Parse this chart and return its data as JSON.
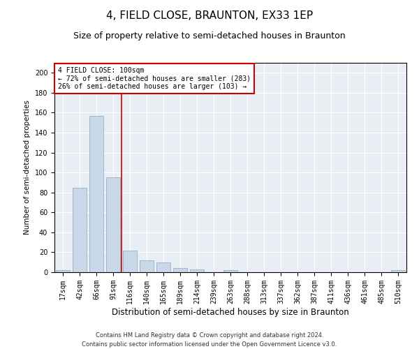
{
  "title": "4, FIELD CLOSE, BRAUNTON, EX33 1EP",
  "subtitle": "Size of property relative to semi-detached houses in Braunton",
  "xlabel": "Distribution of semi-detached houses by size in Braunton",
  "ylabel": "Number of semi-detached properties",
  "categories": [
    "17sqm",
    "42sqm",
    "66sqm",
    "91sqm",
    "116sqm",
    "140sqm",
    "165sqm",
    "189sqm",
    "214sqm",
    "239sqm",
    "263sqm",
    "288sqm",
    "313sqm",
    "337sqm",
    "362sqm",
    "387sqm",
    "411sqm",
    "436sqm",
    "461sqm",
    "485sqm",
    "510sqm"
  ],
  "values": [
    2,
    85,
    157,
    95,
    22,
    12,
    10,
    4,
    3,
    0,
    2,
    0,
    0,
    0,
    0,
    0,
    0,
    0,
    0,
    0,
    2
  ],
  "bar_color": "#c8d8e8",
  "bar_edge_color": "#a0b8cc",
  "vline_x_index": 3.5,
  "vline_color": "#cc0000",
  "annotation_text": "4 FIELD CLOSE: 100sqm\n← 72% of semi-detached houses are smaller (283)\n26% of semi-detached houses are larger (103) →",
  "annotation_box_color": "#ffffff",
  "annotation_box_edge_color": "#cc0000",
  "footer_line1": "Contains HM Land Registry data © Crown copyright and database right 2024.",
  "footer_line2": "Contains public sector information licensed under the Open Government Licence v3.0.",
  "plot_background_color": "#e8eef4",
  "ylim": [
    0,
    210
  ],
  "yticks": [
    0,
    20,
    40,
    60,
    80,
    100,
    120,
    140,
    160,
    180,
    200
  ],
  "title_fontsize": 11,
  "subtitle_fontsize": 9,
  "xlabel_fontsize": 8.5,
  "ylabel_fontsize": 7.5,
  "tick_fontsize": 7,
  "annotation_fontsize": 7,
  "footer_fontsize": 6
}
